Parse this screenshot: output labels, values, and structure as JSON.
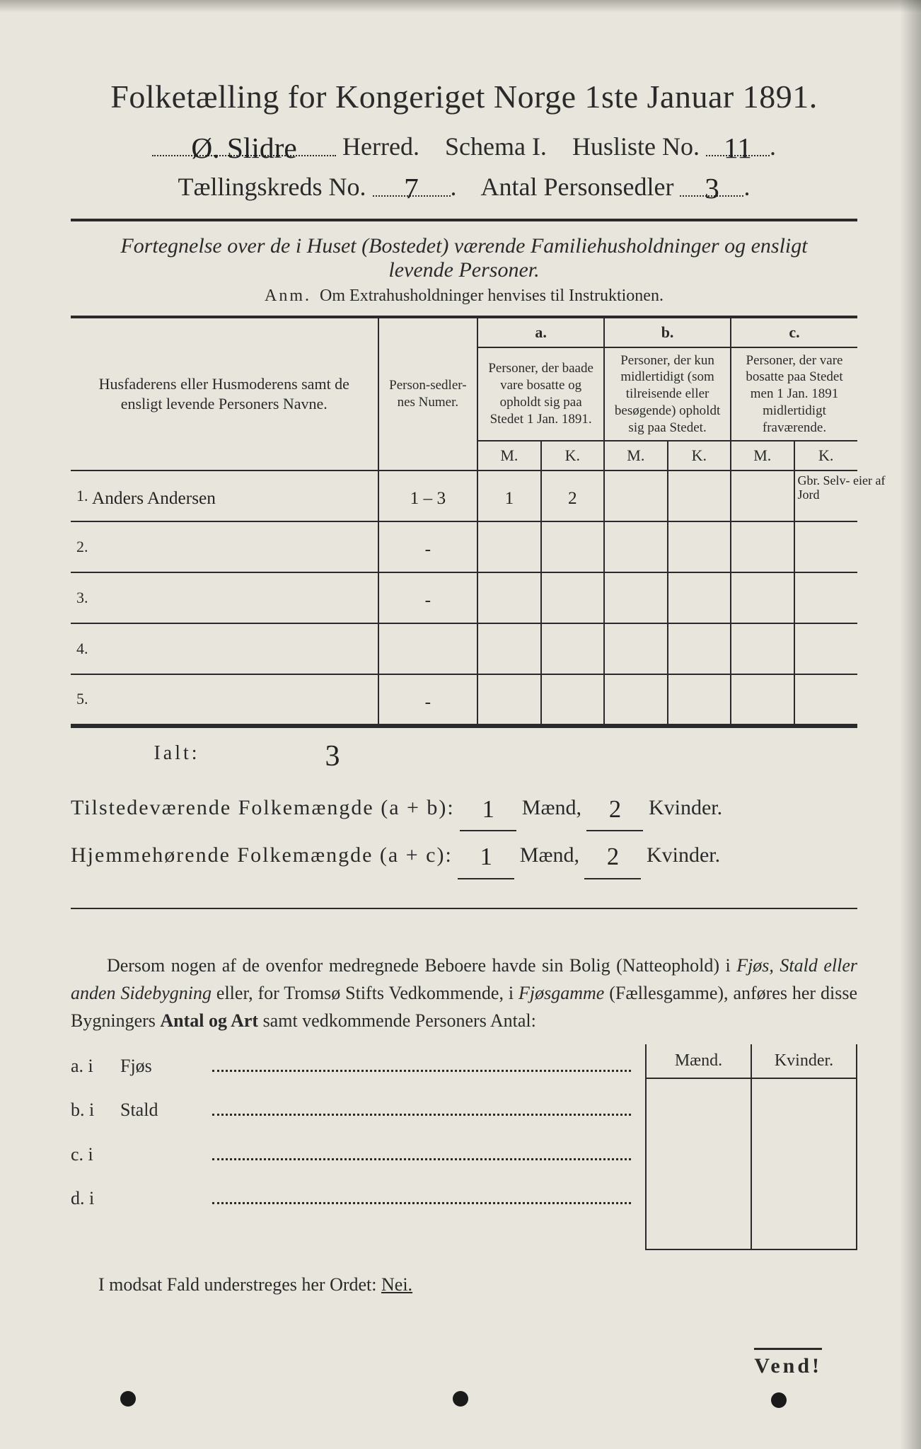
{
  "colors": {
    "page_bg": "#e8e6dc",
    "ink": "#2a2a2a",
    "outer_bg": "#6b6b6b",
    "handwriting": "#222222"
  },
  "typography": {
    "title_fontsize_pt": 34,
    "subheader_fontsize_pt": 27,
    "body_fontsize_pt": 20,
    "table_header_fontsize_pt": 16,
    "hand_font": "cursive"
  },
  "header": {
    "title": "Folketælling for Kongeriget Norge 1ste Januar 1891.",
    "herred_value": "Ø. Slidre",
    "herred_label": "Herred.",
    "schema_label": "Schema I.",
    "husliste_label": "Husliste No.",
    "husliste_value": "11",
    "kreds_label": "Tællingskreds No.",
    "kreds_value": "7",
    "antal_label": "Antal Personsedler",
    "antal_value": "3"
  },
  "subtitle": {
    "line1": "Fortegnelse over de i Huset (Bostedet) værende Familiehusholdninger og ensligt",
    "line2": "levende Personer.",
    "anm_label": "Anm.",
    "anm_text": "Om Extrahusholdninger henvises til Instruktionen."
  },
  "table": {
    "col_names": "Husfaderens eller Husmoderens samt de ensligt levende Personers Navne.",
    "col_person": "Person-sedler-nes Numer.",
    "group_a_label": "a.",
    "group_a_text": "Personer, der baade vare bosatte og opholdt sig paa Stedet 1 Jan. 1891.",
    "group_b_label": "b.",
    "group_b_text": "Personer, der kun midlertidigt (som tilreisende eller besøgende) opholdt sig paa Stedet.",
    "group_c_label": "c.",
    "group_c_text": "Personer, der vare bosatte paa Stedet men 1 Jan. 1891 midlertidigt fraværende.",
    "mk_m": "M.",
    "mk_k": "K.",
    "rows": [
      {
        "n": "1.",
        "name": "Anders Andersen",
        "person": "1 – 3",
        "a_m": "1",
        "a_k": "2",
        "b_m": "",
        "b_k": "",
        "c_m": "",
        "c_k": "",
        "note": "Gbr. Selv- eier af Jord"
      },
      {
        "n": "2.",
        "name": "",
        "person": "-",
        "a_m": "",
        "a_k": "",
        "b_m": "",
        "b_k": "",
        "c_m": "",
        "c_k": "",
        "note": ""
      },
      {
        "n": "3.",
        "name": "",
        "person": "-",
        "a_m": "",
        "a_k": "",
        "b_m": "",
        "b_k": "",
        "c_m": "",
        "c_k": "",
        "note": ""
      },
      {
        "n": "4.",
        "name": "",
        "person": "",
        "a_m": "",
        "a_k": "",
        "b_m": "",
        "b_k": "",
        "c_m": "",
        "c_k": "",
        "note": ""
      },
      {
        "n": "5.",
        "name": "",
        "person": "-",
        "a_m": "",
        "a_k": "",
        "b_m": "",
        "b_k": "",
        "c_m": "",
        "c_k": "",
        "note": ""
      }
    ],
    "ialt_label": "Ialt:",
    "ialt_value": "3"
  },
  "sums": {
    "line1_label": "Tilstedeværende Folkemængde (a + b):",
    "line1_m": "1",
    "line1_k": "2",
    "line2_label": "Hjemmehørende Folkemængde (a + c):",
    "line2_m": "1",
    "line2_k": "2",
    "maend": "Mænd,",
    "kvinder": "Kvinder."
  },
  "paragraph": {
    "text_a": "Dersom nogen af de ovenfor medregnede Beboere havde sin Bolig (Natteophold) i ",
    "it1": "Fjøs, Stald eller anden Sidebygning",
    "text_b": " eller, for Tromsø Stifts Vedkommende, i ",
    "it2": "Fjøsgamme",
    "text_c": " (Fællesgamme), anføres her disse Bygningers ",
    "bold1": "Antal og Art",
    "text_d": " samt vedkommende Personers Antal:"
  },
  "lower": {
    "mk_m": "Mænd.",
    "mk_k": "Kvinder.",
    "rows": [
      {
        "pre": "a.  i",
        "label": "Fjøs"
      },
      {
        "pre": "b.  i",
        "label": "Stald"
      },
      {
        "pre": "c.  i",
        "label": ""
      },
      {
        "pre": "d.  i",
        "label": ""
      }
    ]
  },
  "nei": {
    "text": "I modsat Fald understreges her Ordet: ",
    "word": "Nei."
  },
  "vend": "Vend!"
}
